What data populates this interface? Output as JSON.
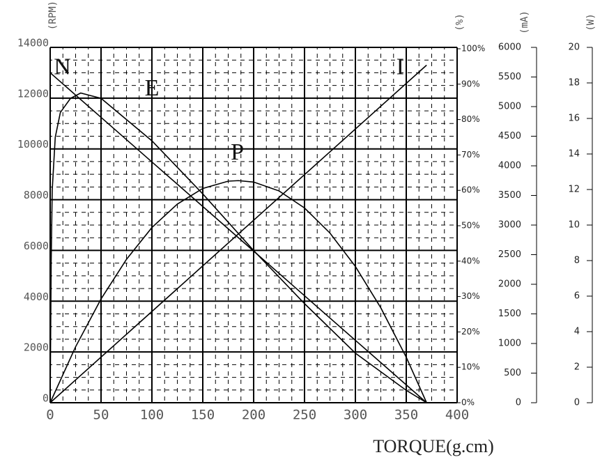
{
  "chart_data": {
    "type": "line",
    "xlabel": "TORQUE(g.cm)",
    "xlim": [
      0,
      400
    ],
    "xticks": [
      0,
      50,
      100,
      150,
      200,
      250,
      300,
      350,
      400
    ],
    "ylabel": "(RPM)",
    "ylim": [
      0,
      14000
    ],
    "yticks": [
      0,
      2000,
      4000,
      6000,
      8000,
      10000,
      12000,
      14000
    ],
    "y2label": "(%)",
    "y2lim": [
      0,
      100
    ],
    "y2ticks": [
      {
        "value": 0,
        "label": "0%"
      },
      {
        "value": 10,
        "label": "10%"
      },
      {
        "value": 20,
        "label": "20%"
      },
      {
        "value": 30,
        "label": "30%"
      },
      {
        "value": 40,
        "label": "40%"
      },
      {
        "value": 50,
        "label": "50%"
      },
      {
        "value": 60,
        "label": "60%"
      },
      {
        "value": 70,
        "label": "70%"
      },
      {
        "value": 80,
        "label": "80%"
      },
      {
        "value": 90,
        "label": "90%"
      },
      {
        "value": 100,
        "label": "100%"
      }
    ],
    "y3label": "(mA)",
    "y3lim": [
      0,
      6000
    ],
    "y3ticks": [
      0,
      500,
      1000,
      1500,
      2000,
      2500,
      3000,
      3500,
      4000,
      4500,
      5000,
      5500,
      6000
    ],
    "y4label": "(W)",
    "y4lim": [
      0,
      20
    ],
    "y4ticks": [
      0,
      2,
      4,
      6,
      8,
      10,
      12,
      14,
      16,
      18,
      20
    ],
    "grid": true,
    "series": [
      {
        "name": "N",
        "axis": "y",
        "color": "#000000",
        "x": [
          0,
          50,
          100,
          150,
          200,
          250,
          300,
          350,
          370
        ],
        "values": [
          13000,
          11243,
          9486,
          7730,
          5973,
          4216,
          2459,
          703,
          0
        ]
      },
      {
        "name": "E",
        "axis": "y2",
        "color": "#000000",
        "x": [
          0,
          1,
          2,
          5,
          10,
          20,
          30,
          50,
          100,
          150,
          200,
          250,
          300,
          350,
          370
        ],
        "values": [
          0,
          40,
          60,
          75,
          82,
          86,
          87.5,
          86,
          74,
          59,
          43,
          28,
          14,
          3.5,
          0
        ]
      },
      {
        "name": "P",
        "axis": "y4",
        "color": "#000000",
        "x": [
          0,
          25,
          50,
          75,
          100,
          125,
          150,
          175,
          185,
          200,
          225,
          250,
          275,
          300,
          325,
          350,
          370
        ],
        "values": [
          0,
          3.15,
          5.84,
          8.07,
          9.86,
          11.18,
          12.06,
          12.47,
          12.5,
          12.42,
          11.92,
          10.96,
          9.55,
          7.67,
          5.34,
          2.56,
          0
        ]
      },
      {
        "name": "I",
        "axis": "y3",
        "color": "#000000",
        "x": [
          0,
          370
        ],
        "values": [
          0,
          5700
        ]
      }
    ]
  }
}
